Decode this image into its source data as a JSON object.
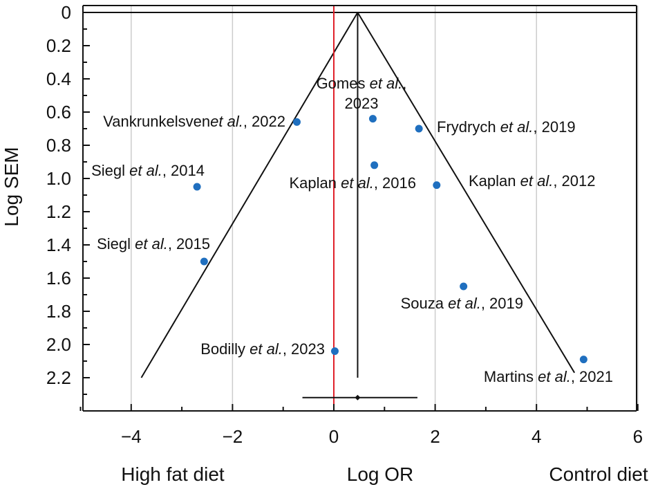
{
  "chart_data": {
    "type": "scatter",
    "subtype": "funnel-plot",
    "xlabel": "Log OR",
    "ylabel": "Log SEM",
    "xlim": [
      -5,
      6
    ],
    "ylim": [
      0,
      2.45
    ],
    "y_inverted": true,
    "x_ticks": [
      -4,
      -2,
      0,
      2,
      4,
      6
    ],
    "x_tick_labels": [
      "−4",
      "−2",
      "0",
      "2",
      "4",
      "6"
    ],
    "y_ticks": [
      0,
      0.2,
      0.4,
      0.6,
      0.8,
      1.0,
      1.2,
      1.4,
      1.6,
      1.8,
      2.0,
      2.2
    ],
    "y_tick_labels": [
      "0",
      "0.2",
      "0.4",
      "0.6",
      "0.8",
      "1.0",
      "1.2",
      "1.4",
      "1.6",
      "1.8",
      "2.0",
      "2.2"
    ],
    "grid_x": true,
    "point_color": "#1f6fbf",
    "null_line": {
      "x": 0,
      "color": "#e0202a"
    },
    "pooled_estimate": {
      "x": 0.47,
      "ci": [
        -0.62,
        1.65
      ],
      "y": 2.32
    },
    "funnel": {
      "apex": [
        0.47,
        0
      ],
      "left_base": [
        -3.8,
        2.2
      ],
      "right_base": [
        4.75,
        2.17
      ]
    },
    "left_side_label": "High fat diet",
    "right_side_label": "Control diet",
    "points": [
      {
        "author": "Vankrunkelsven",
        "etal": "et al.",
        "year": ", 2022",
        "x": -0.73,
        "y": 0.66
      },
      {
        "author": "Gomes ",
        "etal": "et al.",
        "year": "2023",
        "x": 0.77,
        "y": 0.64
      },
      {
        "author": "Frydrych ",
        "etal": "et al.",
        "year": ", 2019",
        "x": 1.68,
        "y": 0.7
      },
      {
        "author": "Kaplan ",
        "etal": "et al.",
        "year": ", 2016",
        "x": 0.8,
        "y": 0.92
      },
      {
        "author": "Kaplan ",
        "etal": "et al.",
        "year": ", 2012",
        "x": 2.03,
        "y": 1.04
      },
      {
        "author": "Siegl ",
        "etal": "et al.",
        "year": ", 2014",
        "x": -2.7,
        "y": 1.05
      },
      {
        "author": "Siegl ",
        "etal": "et al.",
        "year": ", 2015",
        "x": -2.56,
        "y": 1.5
      },
      {
        "author": "Souza ",
        "etal": "et al.",
        "year": ", 2019",
        "x": 2.56,
        "y": 1.65
      },
      {
        "author": "Bodilly ",
        "etal": "et al.",
        "year": ", 2023",
        "x": 0.02,
        "y": 2.04
      },
      {
        "author": "Martins ",
        "etal": "et al.",
        "year": ", 2021",
        "x": 4.93,
        "y": 2.09
      }
    ]
  }
}
